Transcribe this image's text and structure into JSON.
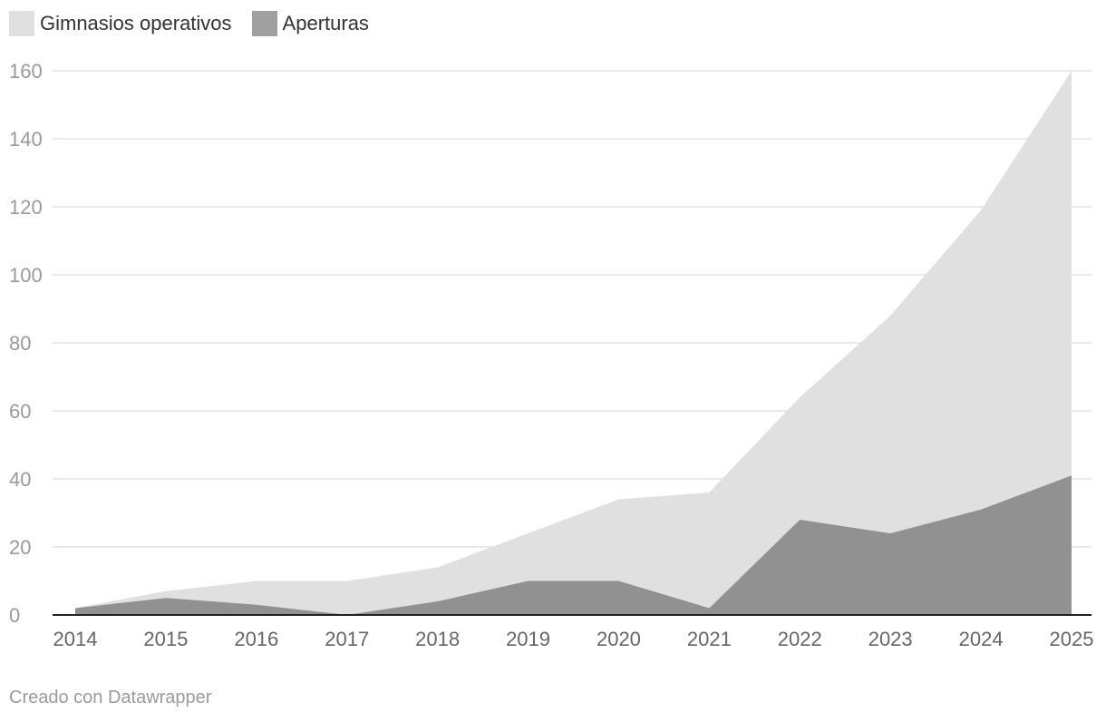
{
  "chart_data": {
    "type": "area",
    "title": "",
    "xlabel": "",
    "ylabel": "",
    "x": [
      "2014",
      "2015",
      "2016",
      "2017",
      "2018",
      "2019",
      "2020",
      "2021",
      "2022",
      "2023",
      "2024",
      "2025"
    ],
    "series": [
      {
        "name": "Gimnasios operativos",
        "color": "#e0e0e0",
        "values": [
          2,
          7,
          10,
          10,
          14,
          24,
          34,
          36,
          64,
          88,
          119,
          160
        ]
      },
      {
        "name": "Aperturas",
        "color": "#919191",
        "values": [
          2,
          5,
          3,
          0,
          4,
          10,
          10,
          2,
          28,
          24,
          31,
          41
        ]
      }
    ],
    "yticks": [
      "0",
      "20",
      "40",
      "60",
      "80",
      "100",
      "120",
      "140",
      "160"
    ],
    "ylim": [
      0,
      160
    ],
    "grid": true,
    "legend": "top-left"
  },
  "legend": {
    "items": [
      {
        "label": "Gimnasios operativos",
        "color": "#e0e0e0"
      },
      {
        "label": "Aperturas",
        "color": "#a0a0a0"
      }
    ]
  },
  "footer": {
    "credit": "Creado con Datawrapper"
  }
}
